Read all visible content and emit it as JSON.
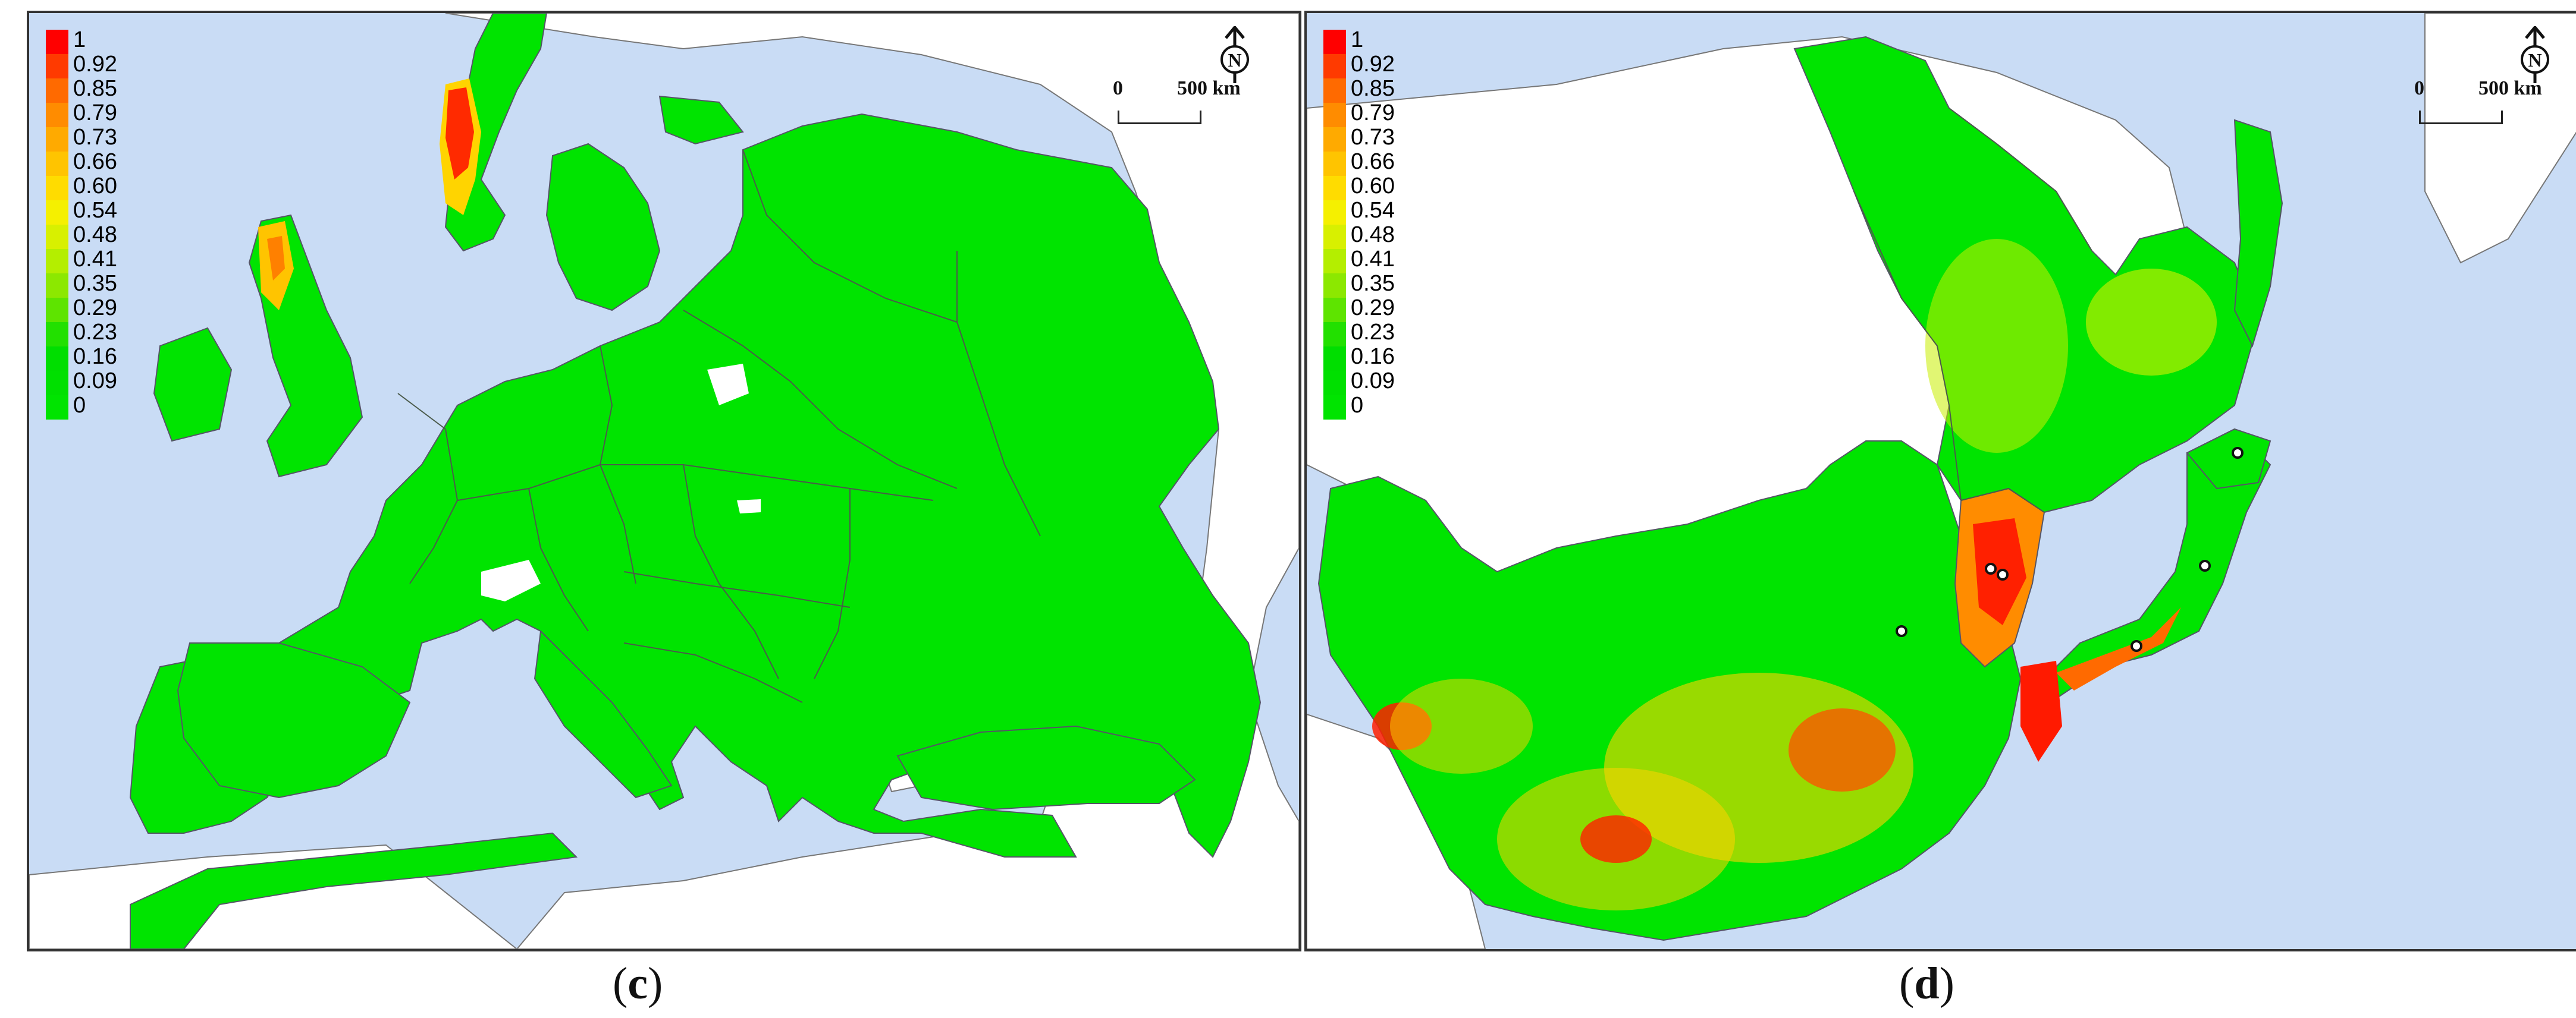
{
  "legend": {
    "labels": [
      "1",
      "0.92",
      "0.85",
      "0.79",
      "0.73",
      "0.66",
      "0.60",
      "0.54",
      "0.48",
      "0.41",
      "0.35",
      "0.29",
      "0.23",
      "0.16",
      "0.09",
      "0"
    ],
    "colors": [
      "#ff0000",
      "#ff3a00",
      "#ff6a00",
      "#ff8c00",
      "#ffaa00",
      "#ffc400",
      "#ffdc00",
      "#f5f000",
      "#d8f000",
      "#b4ee00",
      "#8ce800",
      "#5ee400",
      "#22e000",
      "#00de00",
      "#00e000",
      "#00e400"
    ]
  },
  "panels": [
    {
      "id": "c",
      "caption_open": "(",
      "caption_letter": "c",
      "caption_close": ")",
      "scale_zero": "0",
      "scale_label": "500 km",
      "north_letter": "N"
    },
    {
      "id": "d",
      "caption_open": "(",
      "caption_letter": "d",
      "caption_close": ")",
      "scale_zero": "0",
      "scale_label": "500 km",
      "north_letter": "N"
    }
  ],
  "colors": {
    "sea": "#c9dcf5",
    "land_out": "#ffffff",
    "suitable": "#00e400",
    "border": "#555555"
  }
}
